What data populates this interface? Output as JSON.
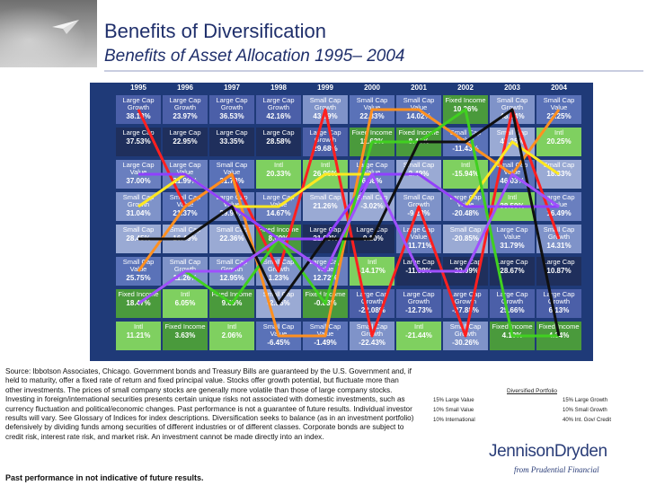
{
  "header": {
    "title": "Benefits of Diversification",
    "subtitle": "Benefits of Asset Allocation 1995– 2004"
  },
  "chart_data": {
    "type": "table",
    "years": [
      "1995",
      "1996",
      "1997",
      "1998",
      "1999",
      "2000",
      "2001",
      "2002",
      "2003",
      "2004"
    ],
    "colors": {
      "large_cap_growth": "#4b5fa8",
      "large_cap": "#1f2f5c",
      "large_cap_value": "#6a7fbf",
      "small_cap_growth": "#7f93c9",
      "small_cap": "#9aaad4",
      "small_cap_value": "#5a72b8",
      "fixed_income": "#4a9a3c",
      "intl": "#7fd060",
      "diversified": "#ffffff",
      "label_light": "#ffffff"
    },
    "columns": [
      [
        {
          "name": "Large Cap Growth",
          "value": "38.13%",
          "cls": "large_cap_growth"
        },
        {
          "name": "Large Cap",
          "value": "37.53%",
          "cls": "large_cap"
        },
        {
          "name": "Large Cap Value",
          "value": "37.00%",
          "cls": "large_cap_value"
        },
        {
          "name": "Small Cap Growth",
          "value": "31.04%",
          "cls": "small_cap_growth"
        },
        {
          "name": "Small Cap",
          "value": "28.45%",
          "cls": "small_cap"
        },
        {
          "name": "Small Cap Value",
          "value": "25.75%",
          "cls": "small_cap_value"
        },
        {
          "name": "Fixed Income",
          "value": "18.47%",
          "cls": "fixed_income"
        },
        {
          "name": "Intl",
          "value": "11.21%",
          "cls": "intl"
        }
      ],
      [
        {
          "name": "Large Cap Growth",
          "value": "23.97%",
          "cls": "large_cap_growth"
        },
        {
          "name": "Large Cap",
          "value": "22.95%",
          "cls": "large_cap"
        },
        {
          "name": "Large Cap Value",
          "value": "21.99%",
          "cls": "large_cap_value"
        },
        {
          "name": "Small Cap Value",
          "value": "21.37%",
          "cls": "small_cap_value"
        },
        {
          "name": "Small Cap",
          "value": "16.49%",
          "cls": "small_cap"
        },
        {
          "name": "Small Cap Growth",
          "value": "11.26%",
          "cls": "small_cap_growth"
        },
        {
          "name": "Intl",
          "value": "6.05%",
          "cls": "intl"
        },
        {
          "name": "Fixed Income",
          "value": "3.63%",
          "cls": "fixed_income"
        }
      ],
      [
        {
          "name": "Large Cap Growth",
          "value": "36.53%",
          "cls": "large_cap_growth"
        },
        {
          "name": "Large Cap",
          "value": "33.35%",
          "cls": "large_cap"
        },
        {
          "name": "Small Cap Value",
          "value": "31.78%",
          "cls": "small_cap_value"
        },
        {
          "name": "Large Cap Value",
          "value": "29.98%",
          "cls": "large_cap_value"
        },
        {
          "name": "Small Cap",
          "value": "22.36%",
          "cls": "small_cap"
        },
        {
          "name": "Small Cap Growth",
          "value": "12.95%",
          "cls": "small_cap_growth"
        },
        {
          "name": "Fixed Income",
          "value": "9.65%",
          "cls": "fixed_income"
        },
        {
          "name": "Intl",
          "value": "2.06%",
          "cls": "intl"
        }
      ],
      [
        {
          "name": "Large Cap Growth",
          "value": "42.16%",
          "cls": "large_cap_growth"
        },
        {
          "name": "Large Cap",
          "value": "28.58%",
          "cls": "large_cap"
        },
        {
          "name": "Intl",
          "value": "20.33%",
          "cls": "intl"
        },
        {
          "name": "Large Cap Value",
          "value": "14.67%",
          "cls": "large_cap_value"
        },
        {
          "name": "Fixed Income",
          "value": "8.69%",
          "cls": "fixed_income"
        },
        {
          "name": "Small Cap Growth",
          "value": "1.23%",
          "cls": "small_cap_growth"
        },
        {
          "name": "Small Cap",
          "value": "-2.55%",
          "cls": "small_cap"
        },
        {
          "name": "Small Cap Value",
          "value": "-6.45%",
          "cls": "small_cap_value"
        }
      ],
      [
        {
          "name": "Small Cap Growth",
          "value": "43.09%",
          "cls": "small_cap_growth"
        },
        {
          "name": "Large Cap Growth",
          "value": "29.68%",
          "cls": "large_cap_growth"
        },
        {
          "name": "Intl",
          "value": "26.96%",
          "cls": "intl"
        },
        {
          "name": "Small Cap",
          "value": "21.26%",
          "cls": "small_cap"
        },
        {
          "name": "Large Cap",
          "value": "21.03%",
          "cls": "large_cap"
        },
        {
          "name": "Large Cap Value",
          "value": "12.72%",
          "cls": "large_cap_value"
        },
        {
          "name": "Fixed Income",
          "value": "-0.83%",
          "cls": "fixed_income"
        },
        {
          "name": "Small Cap Value",
          "value": "-1.49%",
          "cls": "small_cap_value"
        }
      ],
      [
        {
          "name": "Small Cap Value",
          "value": "22.83%",
          "cls": "small_cap_value"
        },
        {
          "name": "Fixed Income",
          "value": "11.63%",
          "cls": "fixed_income"
        },
        {
          "name": "Large Cap Value",
          "value": "6.08%",
          "cls": "large_cap_value"
        },
        {
          "name": "Small Cap",
          "value": "-3.02%",
          "cls": "small_cap"
        },
        {
          "name": "Large Cap",
          "value": "-9.10%",
          "cls": "large_cap"
        },
        {
          "name": "Intl",
          "value": "-14.17%",
          "cls": "intl"
        },
        {
          "name": "Large Cap Growth",
          "value": "-22.08%",
          "cls": "large_cap_growth"
        },
        {
          "name": "Small Cap Growth",
          "value": "-22.43%",
          "cls": "small_cap_growth"
        }
      ],
      [
        {
          "name": "Small Cap Value",
          "value": "14.02%",
          "cls": "small_cap_value"
        },
        {
          "name": "Fixed Income",
          "value": "8.44%",
          "cls": "fixed_income"
        },
        {
          "name": "Small Cap",
          "value": "2.49%",
          "cls": "small_cap"
        },
        {
          "name": "Small Cap Growth",
          "value": "-9.23%",
          "cls": "small_cap_growth"
        },
        {
          "name": "Large Cap Value",
          "value": "-11.71%",
          "cls": "large_cap_value"
        },
        {
          "name": "Large Cap",
          "value": "-11.88%",
          "cls": "large_cap"
        },
        {
          "name": "Large Cap Growth",
          "value": "-12.73%",
          "cls": "large_cap_growth"
        },
        {
          "name": "Intl",
          "value": "-21.44%",
          "cls": "intl"
        }
      ],
      [
        {
          "name": "Fixed Income",
          "value": "10.26%",
          "cls": "fixed_income"
        },
        {
          "name": "Small Cap Value",
          "value": "-11.43%",
          "cls": "small_cap_value"
        },
        {
          "name": "Intl",
          "value": "-15.94%",
          "cls": "intl"
        },
        {
          "name": "Large Cap Value",
          "value": "-20.48%",
          "cls": "large_cap_value"
        },
        {
          "name": "Small Cap",
          "value": "-20.85%",
          "cls": "small_cap"
        },
        {
          "name": "Large Cap",
          "value": "-22.09%",
          "cls": "large_cap"
        },
        {
          "name": "Large Cap Growth",
          "value": "-27.88%",
          "cls": "large_cap_growth"
        },
        {
          "name": "Small Cap Growth",
          "value": "-30.26%",
          "cls": "small_cap_growth"
        }
      ],
      [
        {
          "name": "Small Cap Growth",
          "value": "48.54%",
          "cls": "small_cap_growth"
        },
        {
          "name": "Small Cap",
          "value": "47.25%",
          "cls": "small_cap"
        },
        {
          "name": "Small Cap Value",
          "value": "46.03%",
          "cls": "small_cap_value"
        },
        {
          "name": "Intl",
          "value": "38.59%",
          "cls": "intl"
        },
        {
          "name": "Large Cap Value",
          "value": "31.79%",
          "cls": "large_cap_value"
        },
        {
          "name": "Large Cap",
          "value": "28.67%",
          "cls": "large_cap"
        },
        {
          "name": "Large Cap Growth",
          "value": "25.66%",
          "cls": "large_cap_growth"
        },
        {
          "name": "Fixed Income",
          "value": "4.10%",
          "cls": "fixed_income"
        }
      ],
      [
        {
          "name": "Small Cap Value",
          "value": "22.25%",
          "cls": "small_cap_value"
        },
        {
          "name": "Intl",
          "value": "20.25%",
          "cls": "intl"
        },
        {
          "name": "Small Cap",
          "value": "18.33%",
          "cls": "small_cap"
        },
        {
          "name": "Large Cap Value",
          "value": "16.49%",
          "cls": "large_cap_value"
        },
        {
          "name": "Small Cap Growth",
          "value": "14.31%",
          "cls": "small_cap_growth"
        },
        {
          "name": "Large Cap",
          "value": "10.87%",
          "cls": "large_cap"
        },
        {
          "name": "Large Cap Growth",
          "value": "6.13%",
          "cls": "large_cap_growth"
        },
        {
          "name": "Fixed Income",
          "value": "4.34%",
          "cls": "fixed_income"
        }
      ]
    ],
    "lines": [
      {
        "color": "#ff2020",
        "ranks": [
          1,
          4,
          3,
          6,
          1,
          8,
          4,
          8,
          1,
          5
        ]
      },
      {
        "color": "#ff9020",
        "ranks": [
          6,
          4,
          3,
          8,
          8,
          1,
          1,
          2,
          3,
          1
        ]
      },
      {
        "color": "#ffe820",
        "ranks": [
          4,
          3,
          4,
          4,
          3,
          3,
          3,
          4,
          2,
          3
        ]
      },
      {
        "color": "#9040ff",
        "ranks": [
          3,
          3,
          4,
          5,
          5,
          3,
          3,
          4,
          4,
          4
        ]
      },
      {
        "color": "#40d020",
        "ranks": [
          7,
          6,
          7,
          5,
          7,
          2,
          2,
          1,
          8,
          8
        ]
      },
      {
        "color": "#101010",
        "ranks": [
          5,
          5,
          4,
          7,
          5,
          5,
          2,
          2,
          1,
          8
        ]
      },
      {
        "color": "#a050ff",
        "ranks": [
          7,
          6,
          6,
          5,
          6,
          3,
          6,
          6,
          3,
          4
        ]
      }
    ]
  },
  "source_text": "Source:  Ibbotson Associates, Chicago.  Government bonds and Treasury Bills are guaranteed by the U.S. Government and, if held to maturity, offer a fixed rate of return and fixed principal value. Stocks offer growth potential, but fluctuate more than other investments. The prices of small company stocks are generally more volatile than those of large company stocks. Investing in foreign/international securities presents certain unique risks not associated with domestic investments, such as currency fluctuation and political/economic changes. Past performance is not a guarantee of future results.  Individual investor results will vary.  See Glossary of Indices for index descriptions. Diversification seeks to balance (as in an investment portfolio) defensively by dividing funds among securities of different industries or of different classes. Corporate bonds are subject to credit risk, interest rate risk, and market risk. An investment cannot be made directly into an index.",
  "disclaimer": "Past performance in not indicative of future results.",
  "portfolio": {
    "title": "Diversified Portfolio",
    "items": [
      {
        "label": "15% Large Value"
      },
      {
        "label": "15% Large Growth"
      },
      {
        "label": "10% Small Value"
      },
      {
        "label": "10% Small Growth"
      },
      {
        "label": "10% International"
      },
      {
        "label": "40% Int. Gov/ Credit"
      }
    ]
  },
  "logo": {
    "name": "JennisonDryden",
    "tagline": "from Prudential Financial"
  }
}
